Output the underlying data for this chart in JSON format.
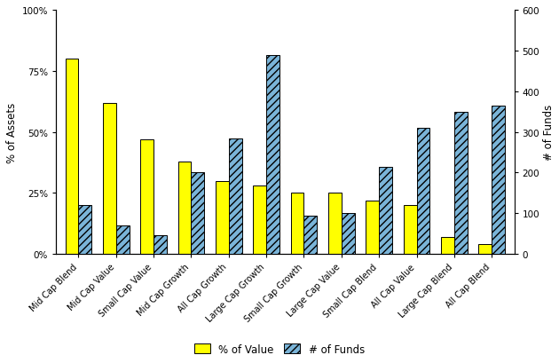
{
  "categories": [
    "Mid Cap Blend",
    "Mid Cap Value",
    "Small Cap Value",
    "Mid Cap Growth",
    "All Cap Growth",
    "Large Cap Growth",
    "Small Cap Growth",
    "Large Cap Value",
    "Small Cap Blend",
    "All Cap Value",
    "Large Cap Blend",
    "All Cap Blend"
  ],
  "pct_value": [
    0.8,
    0.62,
    0.47,
    0.38,
    0.3,
    0.28,
    0.25,
    0.25,
    0.22,
    0.2,
    0.07,
    0.04
  ],
  "num_funds": [
    120,
    70,
    45,
    200,
    285,
    490,
    95,
    100,
    215,
    310,
    350,
    365
  ],
  "bar_color_value": "#ffff00",
  "bar_color_funds_face": "#7ab4d8",
  "bar_color_funds_hatch": "////",
  "bar_color_funds_edge": "#000000",
  "ylabel_left": "% of Assets",
  "ylabel_right": "# of Funds",
  "yticks_left": [
    0,
    0.25,
    0.5,
    0.75,
    1.0
  ],
  "ytick_labels_left": [
    "0%",
    "25%",
    "50%",
    "75%",
    "100%"
  ],
  "yticks_right": [
    0,
    100,
    200,
    300,
    400,
    500,
    600
  ],
  "ylim_left": [
    0,
    1.0
  ],
  "ylim_right": [
    0,
    600
  ],
  "legend_labels": [
    "% of Value",
    "# of Funds"
  ],
  "bar_width": 0.35,
  "background_color": "#ffffff",
  "tick_fontsize": 7.5,
  "label_fontsize": 8.5
}
